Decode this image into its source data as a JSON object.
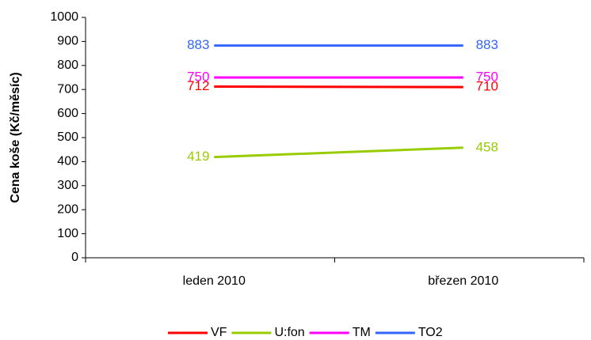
{
  "chart_data": {
    "type": "line",
    "y_label": "Cena koše (Kč/měsíc)",
    "categories": [
      "leden 2010",
      "březen 2010"
    ],
    "series": [
      {
        "name": "VF",
        "color": "#ff0000",
        "values": [
          712,
          710
        ]
      },
      {
        "name": "U:fon",
        "color": "#99cc00",
        "values": [
          419,
          458
        ]
      },
      {
        "name": "TM",
        "color": "#ff00ff",
        "values": [
          750,
          750
        ]
      },
      {
        "name": "TO2",
        "color": "#3366ff",
        "values": [
          883,
          883
        ]
      }
    ],
    "ylim": [
      0,
      1000
    ],
    "yticks": [
      0,
      100,
      200,
      300,
      400,
      500,
      600,
      700,
      800,
      900,
      1000
    ],
    "legend": "bottom"
  }
}
